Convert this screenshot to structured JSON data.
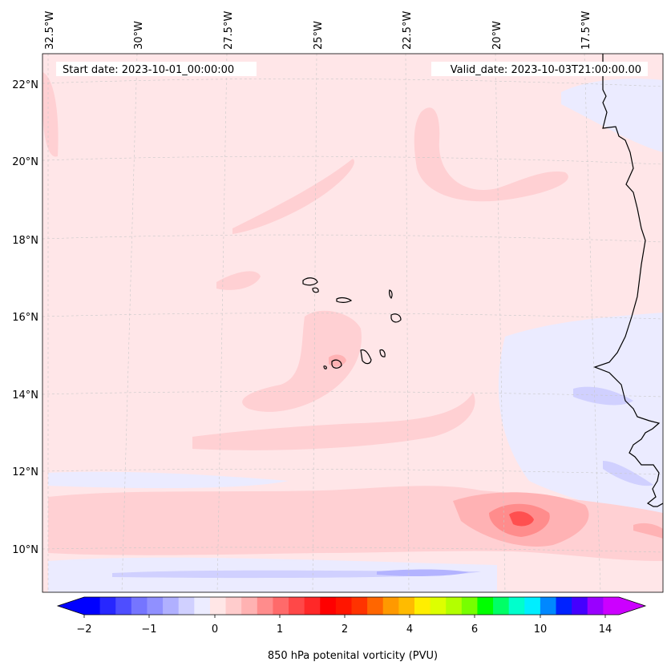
{
  "header": {
    "start_date": "Start date: 2023-10-01_00:00:00",
    "valid_date": "Valid_date: 2023-10-03T21:00:00.00"
  },
  "map": {
    "lon_labels": [
      "32.5°W",
      "30°W",
      "27.5°W",
      "25°W",
      "22.5°W",
      "20°W",
      "17.5°W"
    ],
    "lat_labels": [
      "22°N",
      "20°N",
      "18°N",
      "16°N",
      "14°N",
      "12°N",
      "10°N"
    ],
    "gridlines": "dashed",
    "field": "850 hPa potential vorticity",
    "palette": {
      "background": "#ffe6e8",
      "light_pink": "#ffd0d3",
      "pink": "#ffb2b4",
      "salmon": "#ff8c8c",
      "red": "#ff5050",
      "lavender": "#ebebff",
      "light_blue": "#d0d0ff",
      "periwinkle": "#b3b3ff",
      "coast": "#000000"
    }
  },
  "colorbar": {
    "title": "850 hPa potenital vorticity (PVU)",
    "ticks": [
      "−2",
      "−1",
      "0",
      "1",
      "2",
      "4",
      "6",
      "10",
      "14"
    ],
    "colors": [
      "#0000ff",
      "#2727ff",
      "#4e4eff",
      "#7575ff",
      "#9090ff",
      "#b0b0ff",
      "#d0d0ff",
      "#ececff",
      "#ffe6e6",
      "#ffcccc",
      "#ffb2b2",
      "#ff8c8c",
      "#ff6a6a",
      "#ff4848",
      "#ff2828",
      "#ff0000",
      "#ff1500",
      "#ff3300",
      "#ff6600",
      "#ff9900",
      "#ffbb00",
      "#ffee00",
      "#ddff00",
      "#b3ff00",
      "#77ff00",
      "#00ff00",
      "#00ff66",
      "#00ffcc",
      "#00eeff",
      "#0088ff",
      "#0022ff",
      "#4400ff",
      "#9900ff",
      "#cc00ff"
    ],
    "min_color": "#0000ff",
    "max_color": "#cc00ff"
  }
}
